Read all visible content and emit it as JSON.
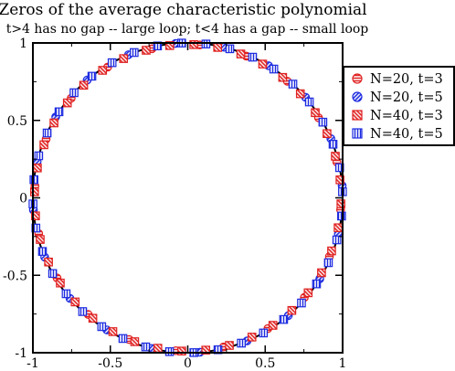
{
  "chart_data": {
    "type": "scatter",
    "title": "Zeros of the average characteristic polynomial",
    "subtitle": "t>4 has no gap -- large loop; t<4 has a gap -- small loop",
    "xlabel": "",
    "ylabel": "",
    "xlim": [
      -1,
      1
    ],
    "ylim": [
      -1,
      1
    ],
    "xticks": [
      -1,
      -0.5,
      0,
      0.5,
      1
    ],
    "xtick_labels": [
      "-1",
      "-0.5",
      "0",
      "0.5",
      "1"
    ],
    "yticks": [
      -1,
      -0.5,
      0,
      0.5,
      1
    ],
    "ytick_labels": [
      "-1",
      "-0.5",
      "0",
      "0.5",
      "1"
    ],
    "grid": false,
    "legend_position": "right",
    "reference_curve": "unit circle",
    "series": [
      {
        "name": "N=20, t=3",
        "marker": "circle-horizontal-hatch",
        "color": "#e02020",
        "n": 20,
        "t": 3,
        "radius": 0.99,
        "offset_deg": 9
      },
      {
        "name": "N=20, t=5",
        "marker": "circle-diagonal-hatch",
        "color": "#1d2be0",
        "n": 20,
        "t": 5,
        "radius": 1.0,
        "offset_deg": 0
      },
      {
        "name": "N=40, t=3",
        "marker": "square-diagonal-hatch",
        "color": "#e02020",
        "n": 40,
        "t": 3,
        "radius": 0.99,
        "offset_deg": 4.5
      },
      {
        "name": "N=40, t=5",
        "marker": "square-vertical-hatch",
        "color": "#1d2be0",
        "n": 40,
        "t": 5,
        "radius": 1.0,
        "offset_deg": 0
      }
    ]
  }
}
